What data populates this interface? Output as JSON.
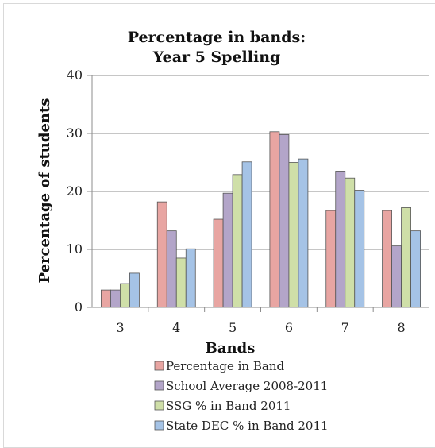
{
  "chart_data": {
    "type": "bar",
    "title": [
      "Percentage in bands:",
      "Year 5 Spelling"
    ],
    "xlabel": "Bands",
    "ylabel": "Percentage of students",
    "categories": [
      "3",
      "4",
      "5",
      "6",
      "7",
      "8"
    ],
    "ylim": [
      0,
      40
    ],
    "yticks": [
      0,
      10,
      20,
      30,
      40
    ],
    "grid": true,
    "legend_position": "bottom",
    "series": [
      {
        "name": "Percentage in Band",
        "color": "#e8a5a2",
        "values": [
          3.0,
          18.2,
          15.2,
          30.3,
          16.7,
          16.7
        ]
      },
      {
        "name": "School Average 2008-2011",
        "color": "#b3a5c9",
        "values": [
          3.0,
          13.2,
          19.7,
          29.8,
          23.5,
          10.6
        ]
      },
      {
        "name": "SSG % in Band 2011",
        "color": "#cfdfa8",
        "values": [
          4.1,
          8.5,
          22.9,
          25.0,
          22.3,
          17.2
        ]
      },
      {
        "name": "State DEC % in Band 2011",
        "color": "#a5c3e6",
        "values": [
          5.9,
          10.1,
          25.1,
          25.6,
          20.2,
          13.2
        ]
      }
    ]
  }
}
